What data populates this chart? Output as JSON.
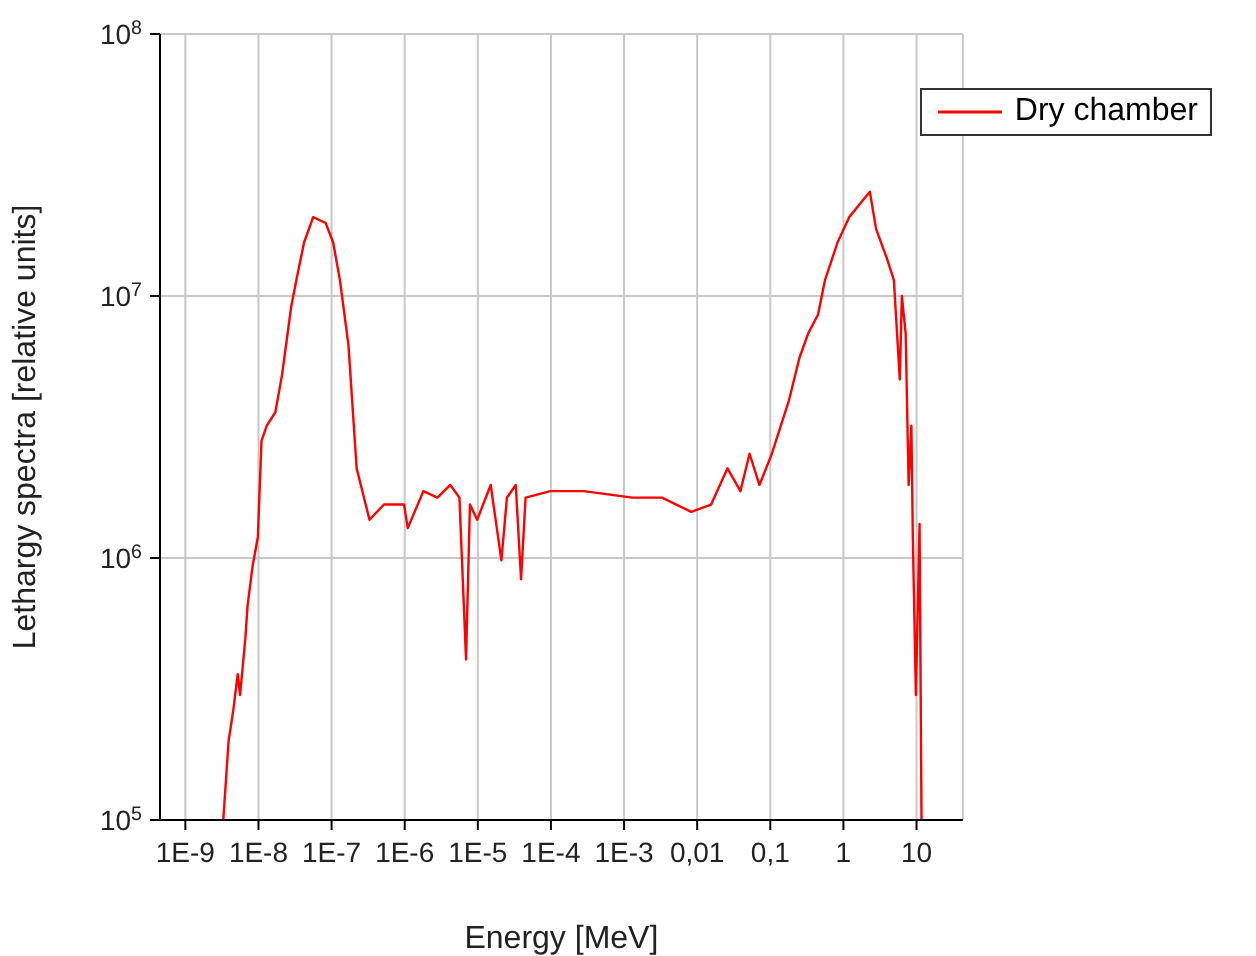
{
  "chart_data": {
    "type": "line",
    "xlabel": "Energy [MeV]",
    "ylabel": "Lethargy spectra [relative units]",
    "log": "xy",
    "grid": true,
    "legend": "top right",
    "marker": "none",
    "line_style": "solid",
    "xlim": [
      4.5e-10,
      43
    ],
    "ylim": [
      100000,
      100000000
    ],
    "xticks": [
      {
        "value": 1e-09,
        "label": "1E-9"
      },
      {
        "value": 1e-08,
        "label": "1E-8"
      },
      {
        "value": 1e-07,
        "label": "1E-7"
      },
      {
        "value": 1e-06,
        "label": "1E-6"
      },
      {
        "value": 1e-05,
        "label": "1E-5"
      },
      {
        "value": 0.0001,
        "label": "1E-4"
      },
      {
        "value": 0.001,
        "label": "1E-3"
      },
      {
        "value": 0.01,
        "label": "0,01"
      },
      {
        "value": 0.1,
        "label": "0,1"
      },
      {
        "value": 1,
        "label": "1"
      },
      {
        "value": 10,
        "label": "10"
      }
    ],
    "yticks": [
      {
        "value": 100000,
        "label": "10$^{5}$"
      },
      {
        "value": 1000000,
        "label": "10$^{6}$"
      },
      {
        "value": 10000000,
        "label": "10$^{7}$"
      },
      {
        "value": 100000000,
        "label": "10$^{8}$"
      }
    ],
    "x": [
      3.3e-09,
      3.9e-09,
      4.5e-09,
      5.2e-09,
      5.6e-09,
      6.6e-09,
      7.1e-09,
      8.3e-09,
      9.8e-09,
      1.1e-08,
      1.3e-08,
      1.7e-08,
      2.1e-08,
      2.8e-08,
      3.3e-08,
      4.2e-08,
      5.6e-08,
      8.3e-08,
      1.05e-07,
      1.3e-07,
      1.7e-07,
      2.2e-07,
      3.1e-07,
      3.3e-07,
      5.2e-07,
      9.8e-07,
      1.1e-06,
      1.8e-06,
      2.8e-06,
      4.2e-06,
      5.6e-06,
      6.9e-06,
      7.8e-06,
      9.8e-06,
      1.5e-05,
      2.1e-05,
      2.5e-05,
      3.3e-05,
      3.9e-05,
      4.5e-05,
      9.8e-05,
      0.00028,
      0.0013,
      0.0033,
      0.0083,
      0.0155,
      0.026,
      0.039,
      0.052,
      0.071,
      0.105,
      0.18,
      0.25,
      0.33,
      0.45,
      0.56,
      0.83,
      1.2,
      1.8,
      2.3,
      2.8,
      3.9,
      4.9,
      5.9,
      6.3,
      7.1,
      7.8,
      8.5,
      8.9,
      9.8,
      11,
      11.7
    ],
    "series": [
      {
        "name": "Dry chamber",
        "color": "#ff0000",
        "values": [
          100000,
          200000,
          260000,
          360000,
          300000,
          490000,
          660000,
          930000,
          1200000,
          2800000,
          3200000,
          3600000,
          5000000,
          9100000,
          11500000,
          16000000,
          20000000,
          19000000,
          16000000,
          11500000,
          6500000,
          2200000,
          1500000,
          1400000,
          1600000,
          1600000,
          1300000,
          1800000,
          1700000,
          1900000,
          1700000,
          410000,
          1600000,
          1400000,
          1900000,
          980000,
          1700000,
          1900000,
          830000,
          1700000,
          1800000,
          1800000,
          1700000,
          1700000,
          1500000,
          1600000,
          2200000,
          1800000,
          2500000,
          1900000,
          2500000,
          4000000,
          5800000,
          7200000,
          8500000,
          11500000,
          16000000,
          20000000,
          23000000,
          25000000,
          18000000,
          14000000,
          11500000,
          4800000,
          10000000,
          7200000,
          1900000,
          3200000,
          1200000,
          300000,
          1350000,
          100000
        ]
      }
    ]
  }
}
